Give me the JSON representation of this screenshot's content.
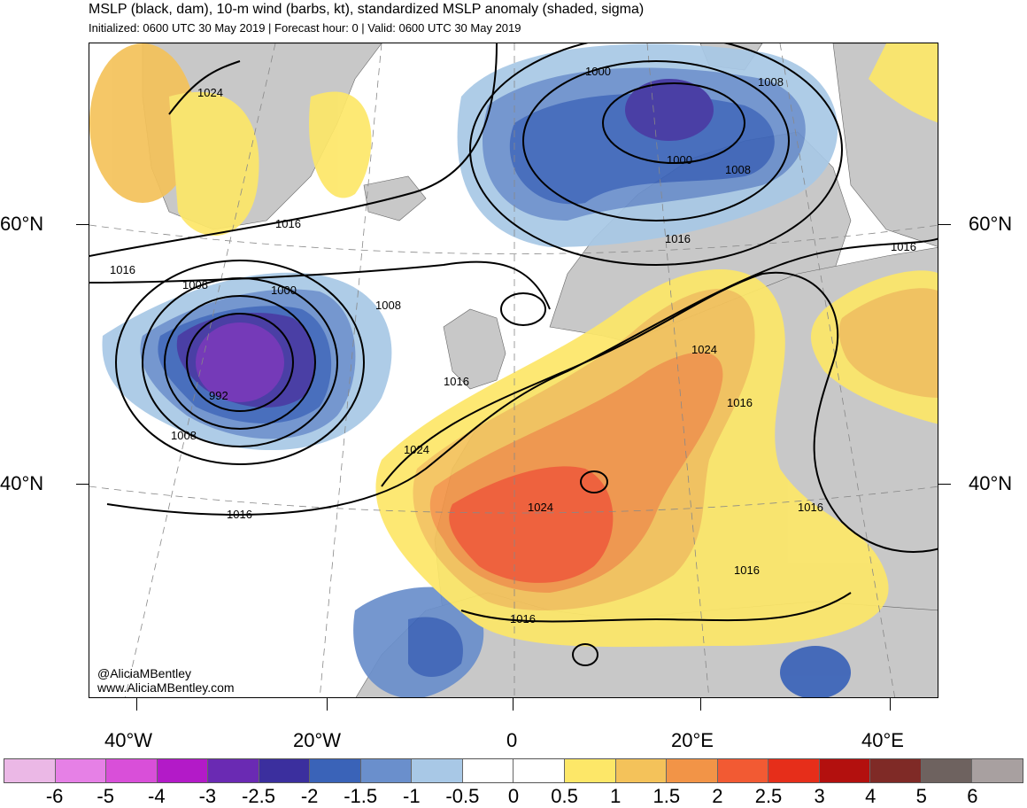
{
  "header": {
    "title": "MSLP (black, dam), 10-m wind (barbs, kt), standardized MSLP anomaly (shaded, sigma)",
    "subtitle": "Initialized: 0600 UTC 30 May 2019 | Forecast hour: 0 | Valid: 0600 UTC 30 May 2019"
  },
  "axes": {
    "lat_labels": [
      "60°N",
      "40°N"
    ],
    "lon_labels": [
      "40°W",
      "20°W",
      "0",
      "20°E",
      "40°E"
    ]
  },
  "isobar_labels": [
    "1024",
    "1000",
    "1008",
    "1000",
    "1008",
    "1016",
    "1016",
    "1016",
    "1008",
    "1000",
    "1008",
    "992",
    "1008",
    "1016",
    "1024",
    "1016",
    "1024",
    "1016",
    "1016",
    "1016",
    "1016",
    "1024",
    "1016"
  ],
  "credits": {
    "twitter": "@AliciaMBentley",
    "website": "www.AliciaMBentley.com"
  },
  "colorbar": {
    "colors": [
      "#ebb8e6",
      "#e680e6",
      "#d94fd9",
      "#b31ac8",
      "#6a2ab3",
      "#3b2f9e",
      "#3a63b8",
      "#6a8fcc",
      "#a8c8e6",
      "#ffffff",
      "#ffffff",
      "#fde768",
      "#f4c25a",
      "#f29447",
      "#f25a33",
      "#e62e1a",
      "#b3100e",
      "#7f2a26",
      "#6e625f",
      "#a8a0a0"
    ],
    "tick_labels": [
      "-6",
      "-5",
      "-4",
      "-3",
      "-2.5",
      "-2",
      "-1.5",
      "-1",
      "-0.5",
      "0",
      "0.5",
      "1",
      "1.5",
      "2",
      "2.5",
      "3",
      "4",
      "5",
      "6"
    ]
  },
  "map_colors": {
    "land": "#c8c8c8",
    "ocean": "#ffffff"
  }
}
